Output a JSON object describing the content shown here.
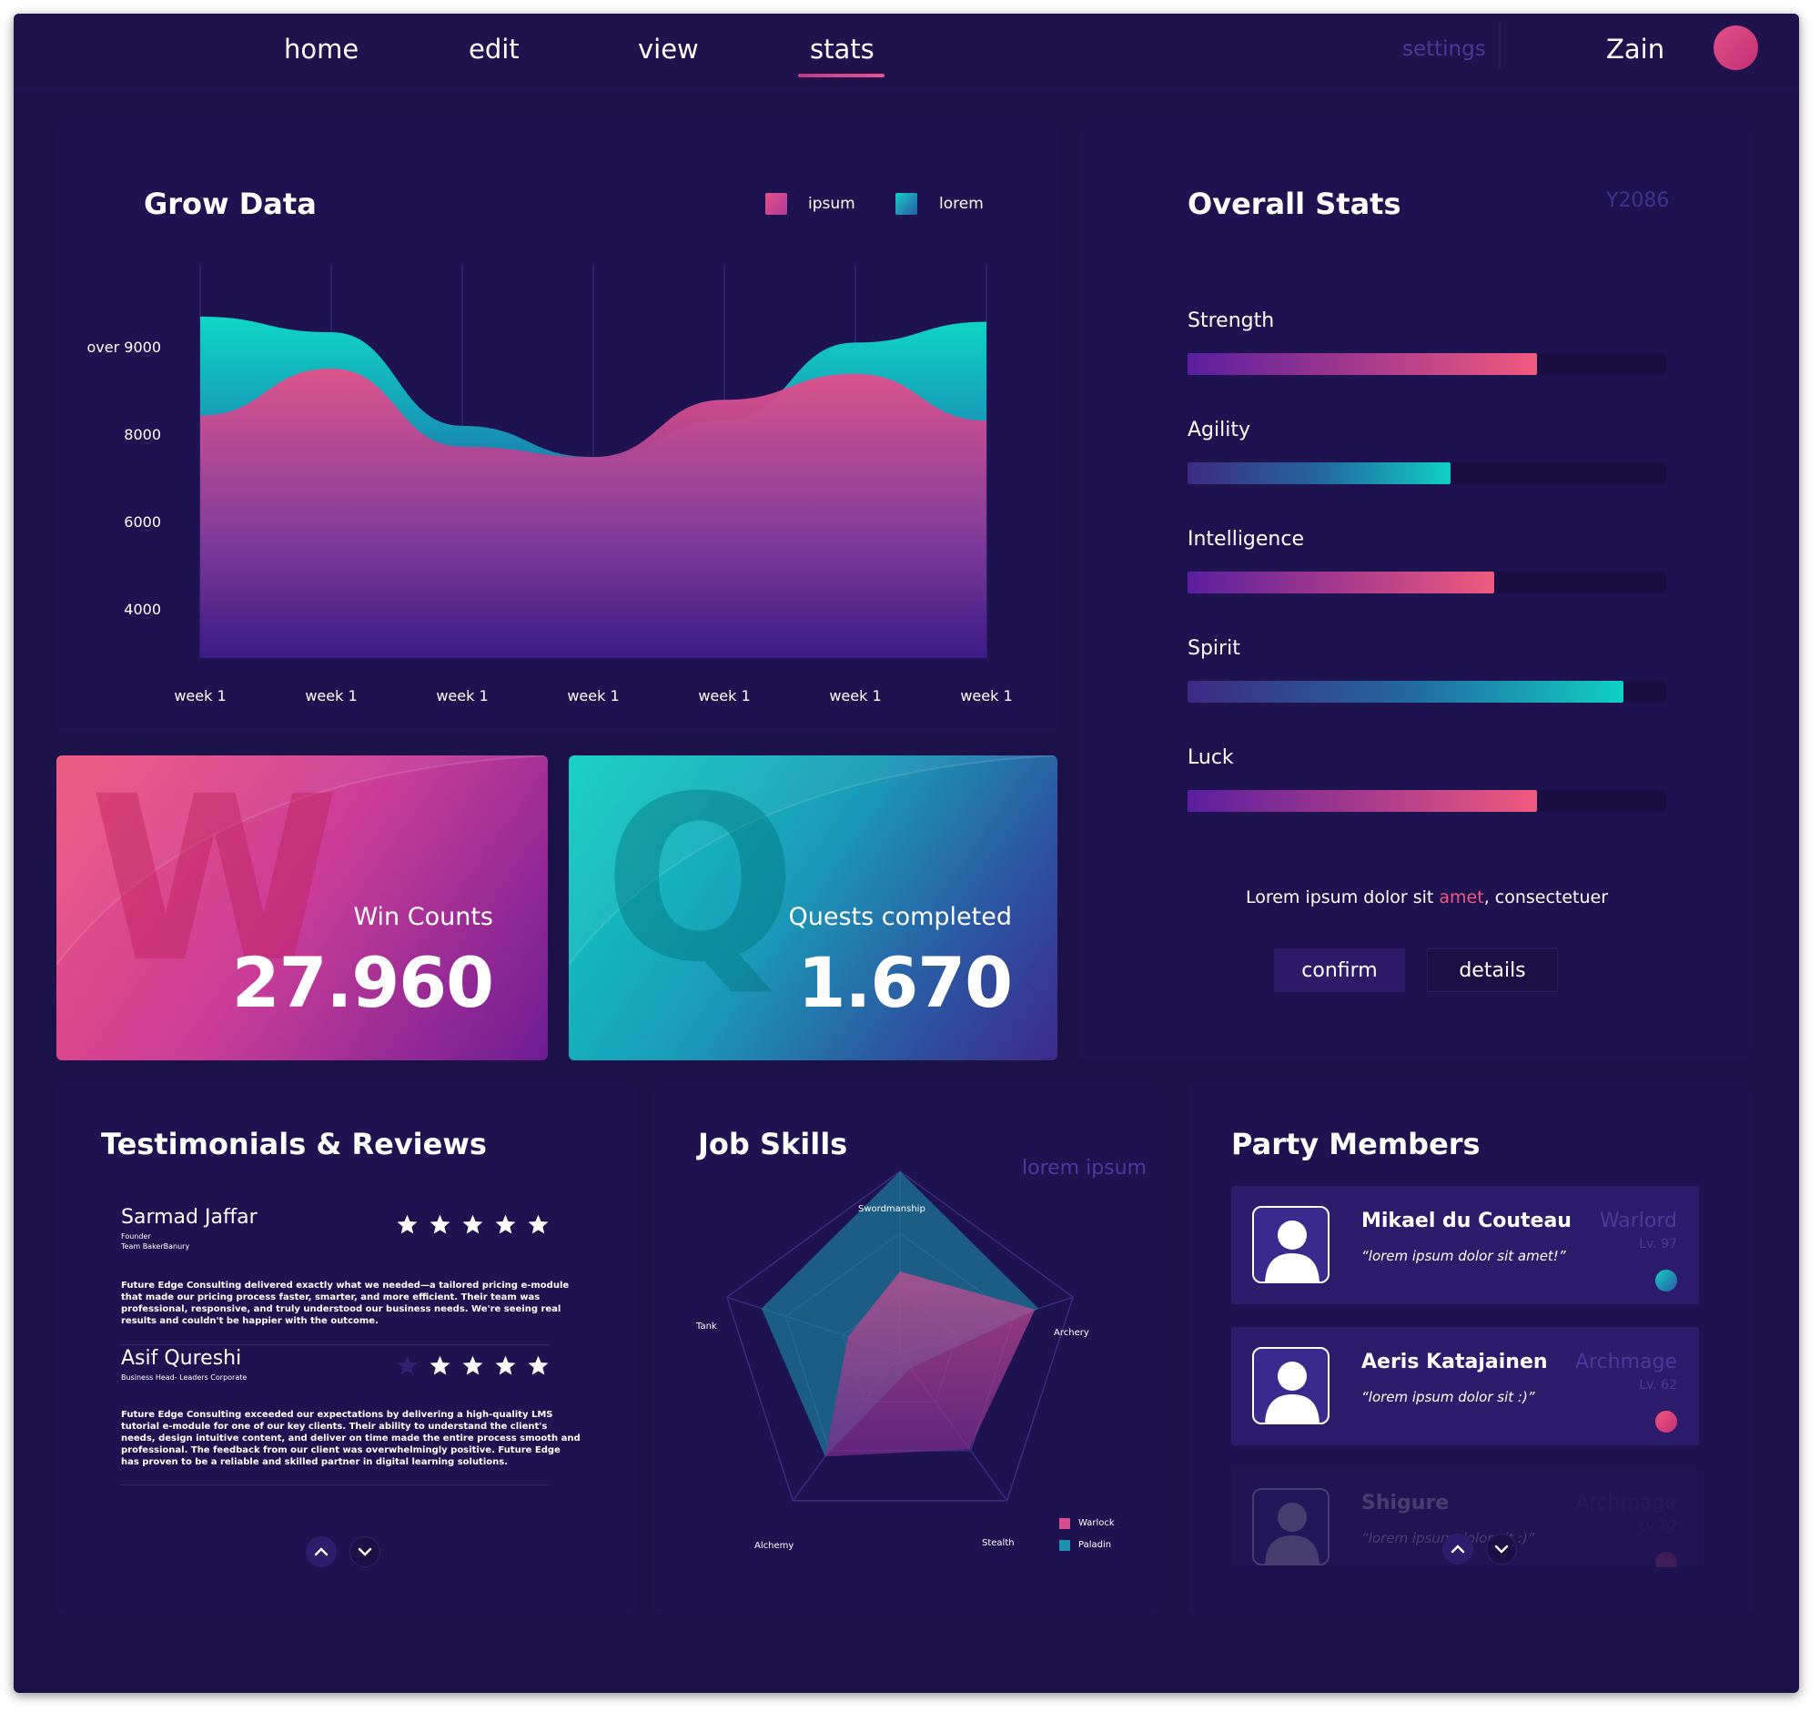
{
  "nav": {
    "items": [
      "home",
      "edit",
      "view",
      "stats"
    ],
    "active": "stats",
    "settings_label": "settings",
    "username": "Zain"
  },
  "grow_data": {
    "title": "Grow Data",
    "chart_data": {
      "type": "area",
      "x": [
        "week 1",
        "week 1",
        "week 1",
        "week 1",
        "week 1",
        "week 1",
        "week 1"
      ],
      "y_tick_labels": [
        "over 9000",
        "8000",
        "6000",
        "4000"
      ],
      "series": [
        {
          "name": "ipsum",
          "color": "#e5508a",
          "values": [
            7000,
            7900,
            6400,
            6200,
            7300,
            7800,
            6900
          ]
        },
        {
          "name": "lorem",
          "color": "#15cfc3",
          "values": [
            8900,
            8600,
            6800,
            6200,
            6900,
            8400,
            8800
          ]
        }
      ],
      "grid": "vertical"
    }
  },
  "cards": {
    "wins": {
      "letter": "W",
      "label": "Win Counts",
      "value": "27.960"
    },
    "quests": {
      "letter": "Q",
      "label": "Quests completed",
      "value": "1.670"
    }
  },
  "overall": {
    "title": "Overall Stats",
    "year": "Y2086",
    "stats": [
      {
        "name": "Strength",
        "fraction": 0.73,
        "style": "pink"
      },
      {
        "name": "Agility",
        "fraction": 0.55,
        "style": "teal"
      },
      {
        "name": "Intelligence",
        "fraction": 0.64,
        "style": "pink"
      },
      {
        "name": "Spirit",
        "fraction": 0.91,
        "style": "teal"
      },
      {
        "name": "Luck",
        "fraction": 0.73,
        "style": "pink"
      }
    ],
    "lorem_before": "Lorem ipsum dolor sit ",
    "lorem_accent": "amet",
    "lorem_after": ", consectetuer",
    "confirm_label": "confirm",
    "details_label": "details"
  },
  "testimonials": {
    "title": "Testimonials & Reviews",
    "reviews": [
      {
        "name": "Sarmad Jaffar",
        "role1": "Founder",
        "role2": "Team BakerBanury",
        "stars": 5,
        "text": "Future Edge Consulting delivered exactly what we needed—a tailored pricing e-module that made our pricing process faster, smarter, and more efficient. Their team was professional, responsive, and truly understood our business needs. We're seeing real results and couldn't be happier with the outcome."
      },
      {
        "name": "Asif Qureshi",
        "role1": "Business Head- Leaders Corporate",
        "role2": "",
        "stars": 4,
        "text": "Future Edge Consulting exceeded our expectations by delivering a high-quality LMS tutorial e-module for one of our key clients. Their ability to understand the client's needs, design intuitive content, and deliver on time made the entire process smooth and professional. The feedback from our client was overwhelmingly positive. Future Edge has proven to be a reliable and skilled partner in digital learning solutions."
      }
    ]
  },
  "job_skills": {
    "title": "Job Skills",
    "subtitle": "lorem ipsum",
    "chart_data": {
      "type": "radar",
      "axes": [
        "Swordmanship",
        "Archery",
        "Stealth",
        "Alchemy",
        "Tank"
      ],
      "series": [
        {
          "name": "Warlock",
          "color": "#d64c8f",
          "values": [
            0.45,
            0.78,
            0.65,
            0.7,
            0.3
          ]
        },
        {
          "name": "Paladin",
          "color": "#1e90b0",
          "values": [
            1.0,
            0.8,
            0.1,
            0.7,
            0.8
          ]
        }
      ]
    }
  },
  "party": {
    "title": "Party Members",
    "members": [
      {
        "name": "Mikael du Couteau",
        "quote": "“lorem ipsum dolor sit amet!”",
        "class": "Warlord",
        "level": "Lv. 97",
        "dot": "teal"
      },
      {
        "name": "Aeris Katajainen",
        "quote": "“lorem ipsum dolor sit :)”",
        "class": "Archmage",
        "level": "Lv. 62",
        "dot": "pink"
      },
      {
        "name": "Shigure",
        "quote": "“lorem ipsum dolor sit :)”",
        "class": "Archmage",
        "level": "Lv. 62",
        "dot": "pink"
      }
    ]
  },
  "colors": {
    "background": "#1c1149",
    "panel": "#1e1350",
    "accent_pink": "#e5508a",
    "accent_teal": "#15cfc3",
    "muted_text": "#4a3a9c"
  },
  "icons": [
    "user-icon",
    "star-icon",
    "chevron-up-icon",
    "chevron-down-icon"
  ]
}
